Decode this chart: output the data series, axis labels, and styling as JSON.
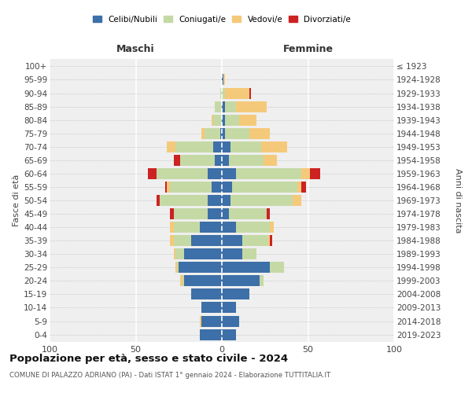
{
  "age_groups": [
    "0-4",
    "5-9",
    "10-14",
    "15-19",
    "20-24",
    "25-29",
    "30-34",
    "35-39",
    "40-44",
    "45-49",
    "50-54",
    "55-59",
    "60-64",
    "65-69",
    "70-74",
    "75-79",
    "80-84",
    "85-89",
    "90-94",
    "95-99",
    "100+"
  ],
  "birth_years": [
    "2019-2023",
    "2014-2018",
    "2009-2013",
    "2004-2008",
    "1999-2003",
    "1994-1998",
    "1989-1993",
    "1984-1988",
    "1979-1983",
    "1974-1978",
    "1969-1973",
    "1964-1968",
    "1959-1963",
    "1954-1958",
    "1949-1953",
    "1944-1948",
    "1939-1943",
    "1934-1938",
    "1929-1933",
    "1924-1928",
    "≤ 1923"
  ],
  "maschi": {
    "celibi": [
      13,
      12,
      12,
      18,
      22,
      25,
      22,
      18,
      13,
      8,
      8,
      6,
      8,
      4,
      5,
      1,
      0,
      0,
      0,
      0,
      0
    ],
    "coniugati": [
      0,
      0,
      0,
      0,
      1,
      1,
      5,
      10,
      15,
      20,
      28,
      24,
      30,
      20,
      22,
      9,
      5,
      4,
      1,
      0,
      0
    ],
    "vedovi": [
      0,
      1,
      0,
      0,
      1,
      1,
      1,
      2,
      2,
      0,
      0,
      2,
      0,
      0,
      5,
      2,
      1,
      0,
      0,
      0,
      0
    ],
    "divorziati": [
      0,
      0,
      0,
      0,
      0,
      0,
      0,
      0,
      0,
      2,
      2,
      1,
      5,
      4,
      0,
      0,
      0,
      0,
      0,
      0,
      0
    ]
  },
  "femmine": {
    "nubili": [
      8,
      10,
      8,
      16,
      22,
      28,
      12,
      12,
      8,
      4,
      5,
      6,
      8,
      4,
      5,
      2,
      2,
      2,
      0,
      1,
      0
    ],
    "coniugate": [
      0,
      0,
      0,
      0,
      2,
      8,
      8,
      15,
      20,
      22,
      36,
      38,
      38,
      20,
      18,
      14,
      8,
      6,
      2,
      0,
      0
    ],
    "vedove": [
      0,
      0,
      0,
      0,
      0,
      0,
      0,
      1,
      2,
      0,
      5,
      2,
      5,
      8,
      15,
      12,
      10,
      18,
      14,
      1,
      0
    ],
    "divorziate": [
      0,
      0,
      0,
      0,
      0,
      0,
      0,
      1,
      0,
      2,
      0,
      3,
      6,
      0,
      0,
      0,
      0,
      0,
      1,
      0,
      0
    ]
  },
  "colors": {
    "celibi": "#3d6fa8",
    "coniugati": "#c5d9a5",
    "vedovi": "#f5c97a",
    "divorziati": "#cc2222"
  },
  "xlim": 100,
  "title": "Popolazione per età, sesso e stato civile - 2024",
  "subtitle": "COMUNE DI PALAZZO ADRIANO (PA) - Dati ISTAT 1° gennaio 2024 - Elaborazione TUTTITALIA.IT",
  "ylabel_left": "Fasce di età",
  "ylabel_right": "Anni di nascita",
  "background_color": "#efefef"
}
